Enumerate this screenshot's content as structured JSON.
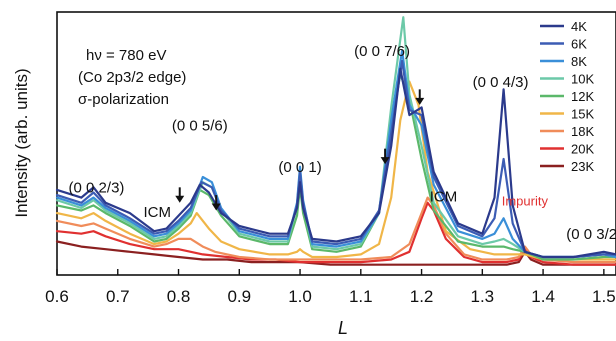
{
  "chart_data": {
    "type": "line",
    "xlabel": "L",
    "ylabel": "Intensity (arb. units)",
    "xlim": [
      0.6,
      1.52
    ],
    "ylim": [
      0,
      1.02
    ],
    "xticks": [
      "0.6",
      "0.7",
      "0.8",
      "0.9",
      "1.0",
      "1.1",
      "1.2",
      "1.3",
      "1.4",
      "1.5"
    ],
    "xtick_values": [
      0.6,
      0.7,
      0.8,
      0.9,
      1.0,
      1.1,
      1.2,
      1.3,
      1.4,
      1.5
    ],
    "legend_position": "top-right",
    "grid": false,
    "info_text": {
      "energy": "hν = 780 eV",
      "edge": "(Co 2p3/2 edge)",
      "polarization": "σ-polarization"
    },
    "annotations": [
      {
        "text": "(0 0 2/3)",
        "x": 0.665,
        "y": 0.32
      },
      {
        "text": "(0 0 5/6)",
        "x": 0.835,
        "y": 0.56
      },
      {
        "text": "ICM",
        "x": 0.765,
        "y": 0.225
      },
      {
        "text": "(0 0 1)",
        "x": 1.0,
        "y": 0.4
      },
      {
        "text": "(0 0 7/6)",
        "x": 1.135,
        "y": 0.85
      },
      {
        "text": "(0 0 4/3)",
        "x": 1.33,
        "y": 0.73
      },
      {
        "text": "ICM",
        "x": 1.236,
        "y": 0.285
      },
      {
        "text": "Impurity",
        "x": 1.37,
        "y": 0.27,
        "color": "#e03030"
      },
      {
        "text": "(0 0 3/2",
        "x": 1.48,
        "y": 0.14
      }
    ],
    "arrows": [
      {
        "x": 0.802,
        "y_top": 0.34,
        "y_tip": 0.28
      },
      {
        "x": 0.862,
        "y_top": 0.31,
        "y_tip": 0.25
      },
      {
        "x": 1.14,
        "y_top": 0.49,
        "y_tip": 0.43
      },
      {
        "x": 1.197,
        "y_top": 0.72,
        "y_tip": 0.66
      }
    ],
    "series": [
      {
        "name": "4K",
        "color": "#2b3a8c",
        "x": [
          0.6,
          0.64,
          0.66,
          0.68,
          0.72,
          0.76,
          0.78,
          0.8,
          0.82,
          0.835,
          0.85,
          0.87,
          0.9,
          0.95,
          0.98,
          0.995,
          1.0,
          1.005,
          1.02,
          1.06,
          1.1,
          1.13,
          1.15,
          1.165,
          1.18,
          1.2,
          1.22,
          1.26,
          1.3,
          1.32,
          1.335,
          1.35,
          1.37,
          1.4,
          1.45,
          1.5,
          1.52
        ],
        "y": [
          0.33,
          0.3,
          0.34,
          0.28,
          0.24,
          0.17,
          0.18,
          0.23,
          0.28,
          0.35,
          0.32,
          0.24,
          0.19,
          0.16,
          0.16,
          0.26,
          0.36,
          0.26,
          0.14,
          0.13,
          0.15,
          0.24,
          0.5,
          0.8,
          0.62,
          0.65,
          0.4,
          0.2,
          0.16,
          0.3,
          0.72,
          0.27,
          0.09,
          0.07,
          0.07,
          0.09,
          0.08
        ]
      },
      {
        "name": "6K",
        "color": "#3c5cb4",
        "x": [
          0.6,
          0.64,
          0.66,
          0.68,
          0.72,
          0.76,
          0.78,
          0.8,
          0.82,
          0.838,
          0.855,
          0.87,
          0.9,
          0.95,
          0.98,
          0.995,
          1.0,
          1.005,
          1.02,
          1.06,
          1.1,
          1.13,
          1.15,
          1.168,
          1.18,
          1.2,
          1.22,
          1.26,
          1.3,
          1.32,
          1.335,
          1.35,
          1.37,
          1.4,
          1.45,
          1.5,
          1.52
        ],
        "y": [
          0.31,
          0.28,
          0.32,
          0.27,
          0.22,
          0.16,
          0.17,
          0.21,
          0.26,
          0.36,
          0.34,
          0.25,
          0.18,
          0.15,
          0.15,
          0.27,
          0.4,
          0.28,
          0.13,
          0.12,
          0.14,
          0.25,
          0.55,
          0.83,
          0.64,
          0.62,
          0.38,
          0.19,
          0.15,
          0.22,
          0.45,
          0.2,
          0.09,
          0.07,
          0.07,
          0.08,
          0.08
        ]
      },
      {
        "name": "8K",
        "color": "#3a8fd8",
        "x": [
          0.6,
          0.64,
          0.66,
          0.68,
          0.72,
          0.76,
          0.78,
          0.8,
          0.82,
          0.84,
          0.855,
          0.87,
          0.9,
          0.95,
          0.98,
          0.995,
          1.0,
          1.005,
          1.02,
          1.06,
          1.1,
          1.13,
          1.15,
          1.168,
          1.18,
          1.2,
          1.22,
          1.26,
          1.3,
          1.32,
          1.335,
          1.35,
          1.37,
          1.4,
          1.45,
          1.5,
          1.52
        ],
        "y": [
          0.3,
          0.27,
          0.3,
          0.26,
          0.21,
          0.15,
          0.16,
          0.2,
          0.25,
          0.38,
          0.36,
          0.26,
          0.17,
          0.14,
          0.14,
          0.28,
          0.42,
          0.29,
          0.12,
          0.11,
          0.13,
          0.24,
          0.6,
          0.87,
          0.66,
          0.58,
          0.35,
          0.17,
          0.14,
          0.16,
          0.22,
          0.14,
          0.09,
          0.07,
          0.07,
          0.08,
          0.07
        ]
      },
      {
        "name": "10K",
        "color": "#6cc9a8",
        "x": [
          0.6,
          0.64,
          0.66,
          0.68,
          0.72,
          0.76,
          0.78,
          0.8,
          0.82,
          0.84,
          0.855,
          0.87,
          0.9,
          0.95,
          0.98,
          0.995,
          1.0,
          1.005,
          1.02,
          1.06,
          1.1,
          1.13,
          1.15,
          1.17,
          1.18,
          1.2,
          1.22,
          1.26,
          1.3,
          1.32,
          1.335,
          1.35,
          1.37,
          1.4,
          1.45,
          1.5,
          1.52
        ],
        "y": [
          0.29,
          0.26,
          0.29,
          0.25,
          0.2,
          0.14,
          0.15,
          0.19,
          0.24,
          0.36,
          0.34,
          0.25,
          0.16,
          0.13,
          0.13,
          0.27,
          0.41,
          0.28,
          0.11,
          0.1,
          0.12,
          0.24,
          0.65,
          1.0,
          0.7,
          0.5,
          0.28,
          0.15,
          0.12,
          0.13,
          0.14,
          0.12,
          0.09,
          0.07,
          0.07,
          0.08,
          0.07
        ]
      },
      {
        "name": "12K",
        "color": "#5bb86a",
        "x": [
          0.6,
          0.64,
          0.66,
          0.68,
          0.72,
          0.76,
          0.78,
          0.8,
          0.82,
          0.835,
          0.85,
          0.87,
          0.9,
          0.95,
          0.98,
          0.995,
          1.0,
          1.005,
          1.02,
          1.06,
          1.1,
          1.13,
          1.15,
          1.165,
          1.18,
          1.2,
          1.22,
          1.26,
          1.3,
          1.32,
          1.335,
          1.35,
          1.37,
          1.4,
          1.45,
          1.5,
          1.52
        ],
        "y": [
          0.27,
          0.25,
          0.27,
          0.24,
          0.19,
          0.13,
          0.14,
          0.18,
          0.23,
          0.33,
          0.31,
          0.23,
          0.15,
          0.12,
          0.12,
          0.23,
          0.34,
          0.24,
          0.1,
          0.09,
          0.11,
          0.24,
          0.58,
          0.78,
          0.68,
          0.45,
          0.25,
          0.13,
          0.11,
          0.11,
          0.11,
          0.1,
          0.09,
          0.06,
          0.06,
          0.07,
          0.07
        ]
      },
      {
        "name": "15K",
        "color": "#f0b648",
        "x": [
          0.6,
          0.64,
          0.66,
          0.68,
          0.72,
          0.76,
          0.78,
          0.8,
          0.82,
          0.83,
          0.85,
          0.87,
          0.9,
          0.95,
          0.98,
          0.995,
          1.0,
          1.005,
          1.02,
          1.06,
          1.1,
          1.13,
          1.15,
          1.165,
          1.18,
          1.195,
          1.21,
          1.24,
          1.28,
          1.32,
          1.335,
          1.35,
          1.37,
          1.4,
          1.45,
          1.5,
          1.52
        ],
        "y": [
          0.24,
          0.22,
          0.24,
          0.21,
          0.16,
          0.12,
          0.13,
          0.16,
          0.2,
          0.24,
          0.18,
          0.13,
          0.1,
          0.08,
          0.08,
          0.09,
          0.1,
          0.09,
          0.07,
          0.07,
          0.08,
          0.12,
          0.3,
          0.6,
          0.75,
          0.66,
          0.4,
          0.17,
          0.1,
          0.08,
          0.08,
          0.08,
          0.08,
          0.06,
          0.06,
          0.06,
          0.06
        ]
      },
      {
        "name": "18K",
        "color": "#f08c5a",
        "x": [
          0.6,
          0.64,
          0.66,
          0.68,
          0.72,
          0.76,
          0.78,
          0.8,
          0.82,
          0.84,
          0.86,
          0.9,
          0.95,
          1.0,
          1.05,
          1.1,
          1.15,
          1.18,
          1.2,
          1.21,
          1.22,
          1.24,
          1.27,
          1.3,
          1.34,
          1.36,
          1.37,
          1.38,
          1.4,
          1.45,
          1.5,
          1.52
        ],
        "y": [
          0.21,
          0.19,
          0.2,
          0.18,
          0.14,
          0.11,
          0.12,
          0.14,
          0.14,
          0.11,
          0.09,
          0.07,
          0.06,
          0.06,
          0.06,
          0.06,
          0.07,
          0.12,
          0.24,
          0.3,
          0.27,
          0.16,
          0.08,
          0.06,
          0.06,
          0.07,
          0.11,
          0.08,
          0.06,
          0.05,
          0.05,
          0.05
        ]
      },
      {
        "name": "20K",
        "color": "#e03030",
        "x": [
          0.6,
          0.64,
          0.66,
          0.68,
          0.72,
          0.76,
          0.8,
          0.84,
          0.88,
          0.92,
          0.96,
          1.0,
          1.05,
          1.1,
          1.15,
          1.18,
          1.2,
          1.21,
          1.22,
          1.24,
          1.27,
          1.3,
          1.34,
          1.36,
          1.37,
          1.38,
          1.4,
          1.45,
          1.5,
          1.52
        ],
        "y": [
          0.17,
          0.16,
          0.17,
          0.15,
          0.12,
          0.1,
          0.1,
          0.08,
          0.07,
          0.06,
          0.06,
          0.05,
          0.05,
          0.05,
          0.06,
          0.09,
          0.22,
          0.28,
          0.25,
          0.14,
          0.07,
          0.05,
          0.05,
          0.06,
          0.1,
          0.07,
          0.05,
          0.04,
          0.04,
          0.04
        ]
      },
      {
        "name": "23K",
        "color": "#8b2020",
        "x": [
          0.6,
          0.64,
          0.68,
          0.72,
          0.76,
          0.8,
          0.84,
          0.88,
          0.92,
          0.96,
          1.0,
          1.05,
          1.1,
          1.15,
          1.2,
          1.25,
          1.3,
          1.34,
          1.36,
          1.37,
          1.38,
          1.4,
          1.45,
          1.5,
          1.52
        ],
        "y": [
          0.13,
          0.11,
          0.1,
          0.09,
          0.08,
          0.07,
          0.06,
          0.06,
          0.05,
          0.05,
          0.05,
          0.04,
          0.04,
          0.04,
          0.04,
          0.04,
          0.04,
          0.04,
          0.05,
          0.09,
          0.06,
          0.04,
          0.04,
          0.04,
          0.04
        ]
      }
    ]
  }
}
